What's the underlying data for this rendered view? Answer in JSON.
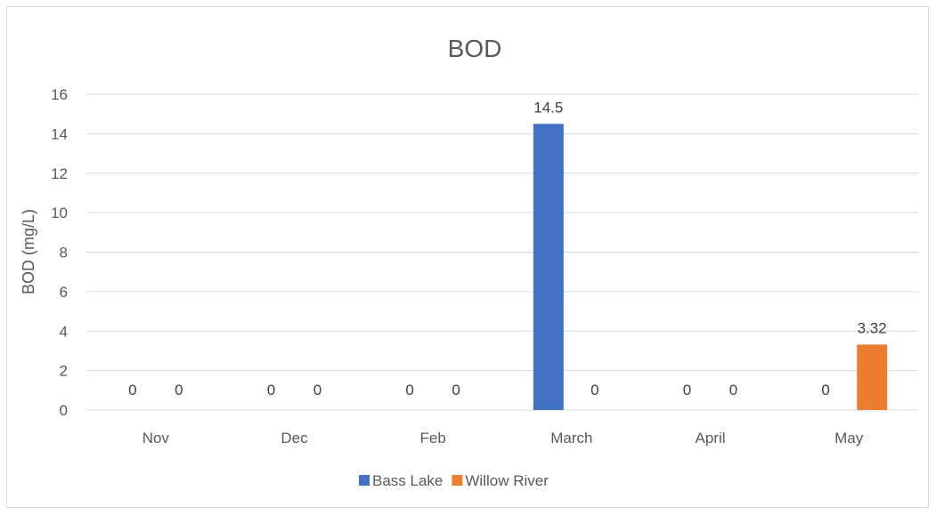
{
  "chart_data": {
    "type": "bar",
    "title": "BOD",
    "xlabel": "",
    "ylabel": "BOD (mg/L)",
    "categories": [
      "Nov",
      "Dec",
      "Feb",
      "March",
      "April",
      "May"
    ],
    "series": [
      {
        "name": "Bass Lake",
        "color": "#4472c4",
        "values": [
          0,
          0,
          0,
          14.5,
          0,
          0
        ]
      },
      {
        "name": "Willow River",
        "color": "#ed7d31",
        "values": [
          0,
          0,
          0,
          0,
          0,
          3.32
        ]
      }
    ],
    "ylim": [
      0,
      16
    ],
    "yticks": [
      0,
      2,
      4,
      6,
      8,
      10,
      12,
      14,
      16
    ],
    "grid": true,
    "legend_position": "bottom"
  }
}
